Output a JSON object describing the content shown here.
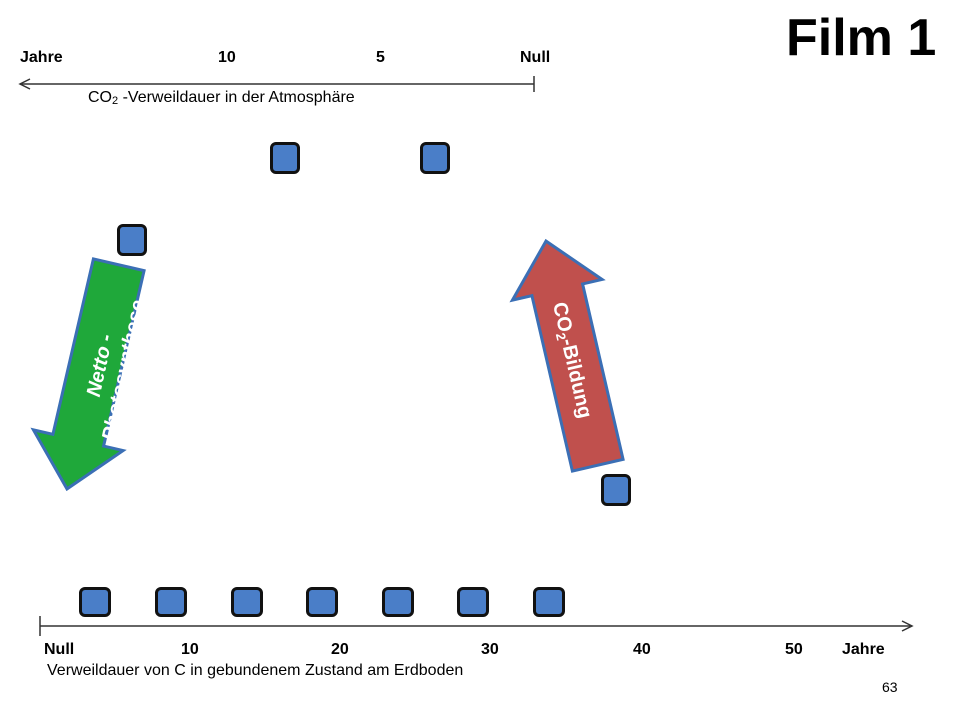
{
  "title": "Film 1",
  "top_axis": {
    "ticks": [
      "Jahre",
      "10",
      "5",
      "Null"
    ],
    "caption_pre": "CO",
    "caption_sub": "2",
    "caption_post": " -Verweildauer  in der  Atmosphäre"
  },
  "bottom_axis": {
    "ticks": [
      "Null",
      "10",
      "20",
      "30",
      "40",
      "50",
      "Jahre"
    ],
    "caption": "Verweildauer von C in gebundenem Zustand am Erdboden"
  },
  "arrows": {
    "photosynthesis": {
      "line1": "Netto -",
      "line2": "Photosynthese",
      "color": "#1fa83a"
    },
    "co2_formation": {
      "pre": "CO",
      "sub": "2",
      "post": "-Bildung",
      "color": "#c0504d"
    }
  },
  "square_color": "#4a7ec8",
  "page_number": "63"
}
